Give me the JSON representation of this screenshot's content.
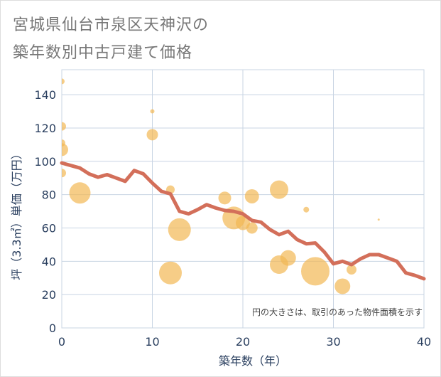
{
  "title_lines": [
    "宮城県仙台市泉区天神沢の",
    "築年数別中古戸建て価格"
  ],
  "note": "円の大きさは、取引のあった物件面積を示す",
  "colors": {
    "bubble": "#f2b854",
    "line": "#d36f5a",
    "grid": "#c8d4e3",
    "axis_text": "#2a3f5f",
    "title_text": "#777777"
  },
  "chart_data": {
    "type": "scatter",
    "xlabel": "築年数（年）",
    "ylabel": "坪（3.3㎡）単価（万円）",
    "xlim": [
      0,
      40
    ],
    "ylim": [
      0,
      155
    ],
    "xticks": [
      0,
      10,
      20,
      30,
      40
    ],
    "yticks": [
      0,
      20,
      40,
      60,
      80,
      100,
      120,
      140
    ],
    "grid": true,
    "series": [
      {
        "type": "scatter",
        "points": [
          {
            "x": 0,
            "y": 148,
            "size": 4
          },
          {
            "x": 0,
            "y": 121,
            "size": 6
          },
          {
            "x": 0,
            "y": 111,
            "size": 5
          },
          {
            "x": 0,
            "y": 107,
            "size": 9
          },
          {
            "x": 0,
            "y": 93,
            "size": 6
          },
          {
            "x": 2,
            "y": 81,
            "size": 15
          },
          {
            "x": 10,
            "y": 130,
            "size": 3
          },
          {
            "x": 10,
            "y": 116,
            "size": 8
          },
          {
            "x": 12,
            "y": 83,
            "size": 6
          },
          {
            "x": 12,
            "y": 33,
            "size": 16
          },
          {
            "x": 13,
            "y": 59,
            "size": 16
          },
          {
            "x": 18,
            "y": 78,
            "size": 9
          },
          {
            "x": 19,
            "y": 66,
            "size": 16
          },
          {
            "x": 20,
            "y": 63,
            "size": 10
          },
          {
            "x": 21,
            "y": 79,
            "size": 10
          },
          {
            "x": 21,
            "y": 60,
            "size": 8
          },
          {
            "x": 24,
            "y": 83,
            "size": 13
          },
          {
            "x": 24,
            "y": 38,
            "size": 13
          },
          {
            "x": 25,
            "y": 42,
            "size": 11
          },
          {
            "x": 27,
            "y": 71,
            "size": 4
          },
          {
            "x": 28,
            "y": 34,
            "size": 20
          },
          {
            "x": 31,
            "y": 25,
            "size": 11
          },
          {
            "x": 32,
            "y": 35,
            "size": 7
          },
          {
            "x": 35,
            "y": 65,
            "size": 1.5
          }
        ]
      },
      {
        "type": "line",
        "x": [
          0,
          1,
          2,
          3,
          4,
          5,
          6,
          7,
          8,
          9,
          10,
          11,
          12,
          13,
          14,
          15,
          16,
          17,
          18,
          19,
          20,
          21,
          22,
          23,
          24,
          25,
          26,
          27,
          28,
          29,
          30,
          31,
          32,
          33,
          34,
          35,
          36,
          37,
          38,
          39,
          40
        ],
        "y": [
          99,
          97.5,
          96,
          92.5,
          90.5,
          92,
          90,
          88,
          94.5,
          92.5,
          87,
          82,
          80.5,
          70,
          68.5,
          71,
          74,
          72,
          70.5,
          70,
          68.5,
          64.5,
          63.5,
          59,
          56,
          58,
          53,
          50.5,
          51,
          45.5,
          38.5,
          40,
          38,
          41.5,
          44,
          44,
          42,
          40,
          33,
          31.5,
          29.5
        ]
      }
    ]
  }
}
